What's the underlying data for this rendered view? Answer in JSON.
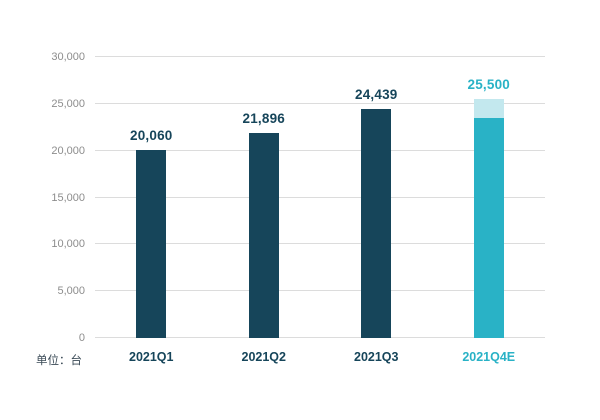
{
  "chart_data": {
    "type": "bar",
    "categories": [
      "2021Q1",
      "2021Q2",
      "2021Q3",
      "2021Q4E"
    ],
    "values": [
      20060,
      21896,
      24439,
      25500
    ],
    "value_labels": [
      "20,060",
      "21,896",
      "24,439",
      "25,500"
    ],
    "bar_colors": [
      "#16455a",
      "#16455a",
      "#16455a",
      "#29b2c6"
    ],
    "value_label_colors": [
      "#16455a",
      "#16455a",
      "#16455a",
      "#29b2c6"
    ],
    "xlabel_colors": [
      "#16455a",
      "#16455a",
      "#16455a",
      "#29b2c6"
    ],
    "estimate": {
      "index": 3,
      "solid_value": 23500,
      "light_color": "#c3e8ee"
    },
    "title": "",
    "xlabel": "",
    "ylabel": "",
    "ylim": [
      0,
      30000
    ],
    "yticks": [
      0,
      5000,
      10000,
      15000,
      20000,
      25000,
      30000
    ],
    "ytick_labels": [
      "0",
      "5,000",
      "10,000",
      "15,000",
      "20,000",
      "25,000",
      "30,000"
    ],
    "grid": true,
    "legend": "none",
    "unit_label": "单位：台"
  }
}
